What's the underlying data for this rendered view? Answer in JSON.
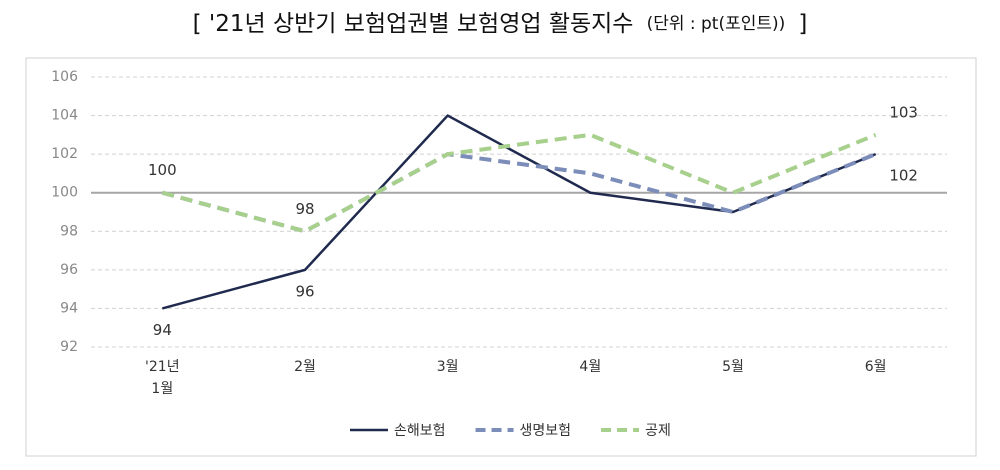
{
  "chart_data": {
    "type": "line",
    "title": "[ '21년 상반기 보험업권별 보험영업 활동지수",
    "unit": "(단위 : pt(포인트))",
    "title_end": "]",
    "categories": [
      "'21년\n1월",
      "2월",
      "3월",
      "4월",
      "5월",
      "6월"
    ],
    "series": [
      {
        "name": "손해보험",
        "color": "#1f2a4e",
        "dash": false,
        "values": [
          94,
          96,
          104,
          100,
          99,
          102
        ],
        "data_labels": [
          0,
          1,
          5
        ],
        "label_position": "below"
      },
      {
        "name": "생명보험",
        "color": "#7b8db8",
        "dash": true,
        "values": [
          100,
          98,
          102,
          101,
          99,
          102
        ],
        "data_labels": [
          0,
          1
        ],
        "label_position": "above"
      },
      {
        "name": "공제",
        "color": "#a8d08d",
        "dash": true,
        "values": [
          100,
          98,
          102,
          103,
          100,
          103
        ],
        "data_labels": [
          5
        ],
        "label_position": "above"
      }
    ],
    "ylim": [
      92,
      106
    ],
    "yticks": [
      92,
      94,
      96,
      98,
      100,
      102,
      104,
      106
    ],
    "grid": true,
    "baseline": 100,
    "legend": "bottom"
  }
}
